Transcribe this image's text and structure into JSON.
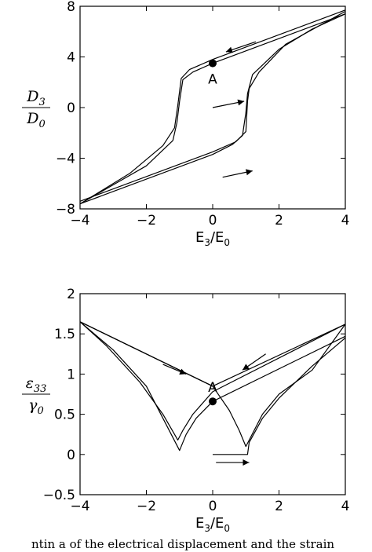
{
  "caption": "ntin a of the electrical displacement and the strain",
  "chart_data": [
    {
      "type": "line",
      "title": "",
      "xlabel": "E3/E0",
      "ylabel": "D3/D0",
      "xlim": [
        -4,
        4
      ],
      "ylim": [
        -8,
        8
      ],
      "x_ticks": [
        "−4",
        "−2",
        "0",
        "2",
        "4"
      ],
      "y_ticks": [
        "−8",
        "−4",
        "0",
        "4",
        "8"
      ],
      "grid": false,
      "legend": "none",
      "point": {
        "label": "A",
        "x": 0,
        "y": 3.5
      },
      "series": [
        {
          "x": [
            4,
            0,
            -0.6,
            -0.9,
            -1.0,
            -1.08,
            -1.2,
            -2,
            -3,
            -4
          ],
          "y": [
            7.4,
            3.5,
            2.8,
            2.2,
            0.5,
            -1.2,
            -2.6,
            -4.6,
            -6.1,
            -7.6
          ]
        },
        {
          "x": [
            4,
            0,
            -0.7,
            -0.95,
            -1.05,
            -1.15,
            -1.5,
            -2.5,
            -4
          ],
          "y": [
            7.7,
            3.8,
            3.0,
            2.3,
            0.2,
            -1.6,
            -3.0,
            -5.2,
            -7.6
          ]
        },
        {
          "x": [
            -4,
            0,
            0.6,
            0.9,
            1.0,
            1.05,
            1.2,
            2,
            3,
            4
          ],
          "y": [
            -7.6,
            -3.7,
            -2.9,
            -2.2,
            -0.4,
            1.1,
            2.6,
            4.6,
            6.2,
            7.4
          ]
        },
        {
          "x": [
            -4,
            0,
            0.7,
            1.0,
            1.05,
            1.1,
            1.4,
            2.2,
            4
          ],
          "y": [
            -7.4,
            -3.5,
            -2.7,
            -1.9,
            0.5,
            1.5,
            2.8,
            5.0,
            7.6
          ]
        }
      ],
      "arrows": [
        {
          "from": [
            1.3,
            5.2
          ],
          "to": [
            0.4,
            4.4
          ]
        },
        {
          "from": [
            0.0,
            0.0
          ],
          "to": [
            0.95,
            0.5
          ]
        },
        {
          "from": [
            0.3,
            -5.5
          ],
          "to": [
            1.2,
            -5.0
          ]
        }
      ]
    },
    {
      "type": "line",
      "title": "",
      "xlabel": "E3/E0",
      "ylabel": "ε33/γ0",
      "xlim": [
        -4,
        4
      ],
      "ylim": [
        -0.5,
        2
      ],
      "x_ticks": [
        "−4",
        "−2",
        "0",
        "2",
        "4"
      ],
      "y_ticks": [
        "−0.5",
        "0",
        "0.5",
        "1",
        "1.5",
        "2"
      ],
      "grid": false,
      "legend": "none",
      "point": {
        "label": "A",
        "x": 0,
        "y": 0.66
      },
      "series": [
        {
          "x": [
            4,
            0,
            -0.5,
            -0.8,
            -1.0,
            -1.5,
            -2.0,
            -3.0,
            -4.0
          ],
          "y": [
            1.47,
            0.66,
            0.45,
            0.25,
            0.05,
            0.45,
            0.85,
            1.3,
            1.65
          ]
        },
        {
          "x": [
            4,
            0,
            -0.6,
            -0.9,
            -1.05,
            -1.5,
            -2.2,
            -3.2,
            -4.0
          ],
          "y": [
            1.62,
            0.78,
            0.5,
            0.3,
            0.18,
            0.5,
            0.9,
            1.35,
            1.65
          ]
        },
        {
          "x": [
            -4,
            0,
            0.5,
            0.8,
            1.0,
            1.5,
            2.0,
            3.0,
            4.0
          ],
          "y": [
            1.65,
            0.85,
            0.55,
            0.3,
            0.1,
            0.5,
            0.75,
            1.05,
            1.62
          ]
        },
        {
          "x": [
            0,
            1.05,
            1.1,
            1.5,
            2.0,
            3.0,
            4.0
          ],
          "y": [
            0.0,
            0.0,
            0.15,
            0.45,
            0.7,
            1.1,
            1.45
          ]
        },
        {
          "x": [
            -4,
            0,
            4
          ],
          "y": [
            1.65,
            0.85,
            1.62
          ]
        }
      ],
      "arrows": [
        {
          "from": [
            -1.5,
            1.12
          ],
          "to": [
            -0.8,
            1.0
          ]
        },
        {
          "from": [
            1.6,
            1.25
          ],
          "to": [
            0.9,
            1.05
          ]
        },
        {
          "from": [
            0.1,
            -0.1
          ],
          "to": [
            1.1,
            -0.1
          ]
        }
      ]
    }
  ]
}
